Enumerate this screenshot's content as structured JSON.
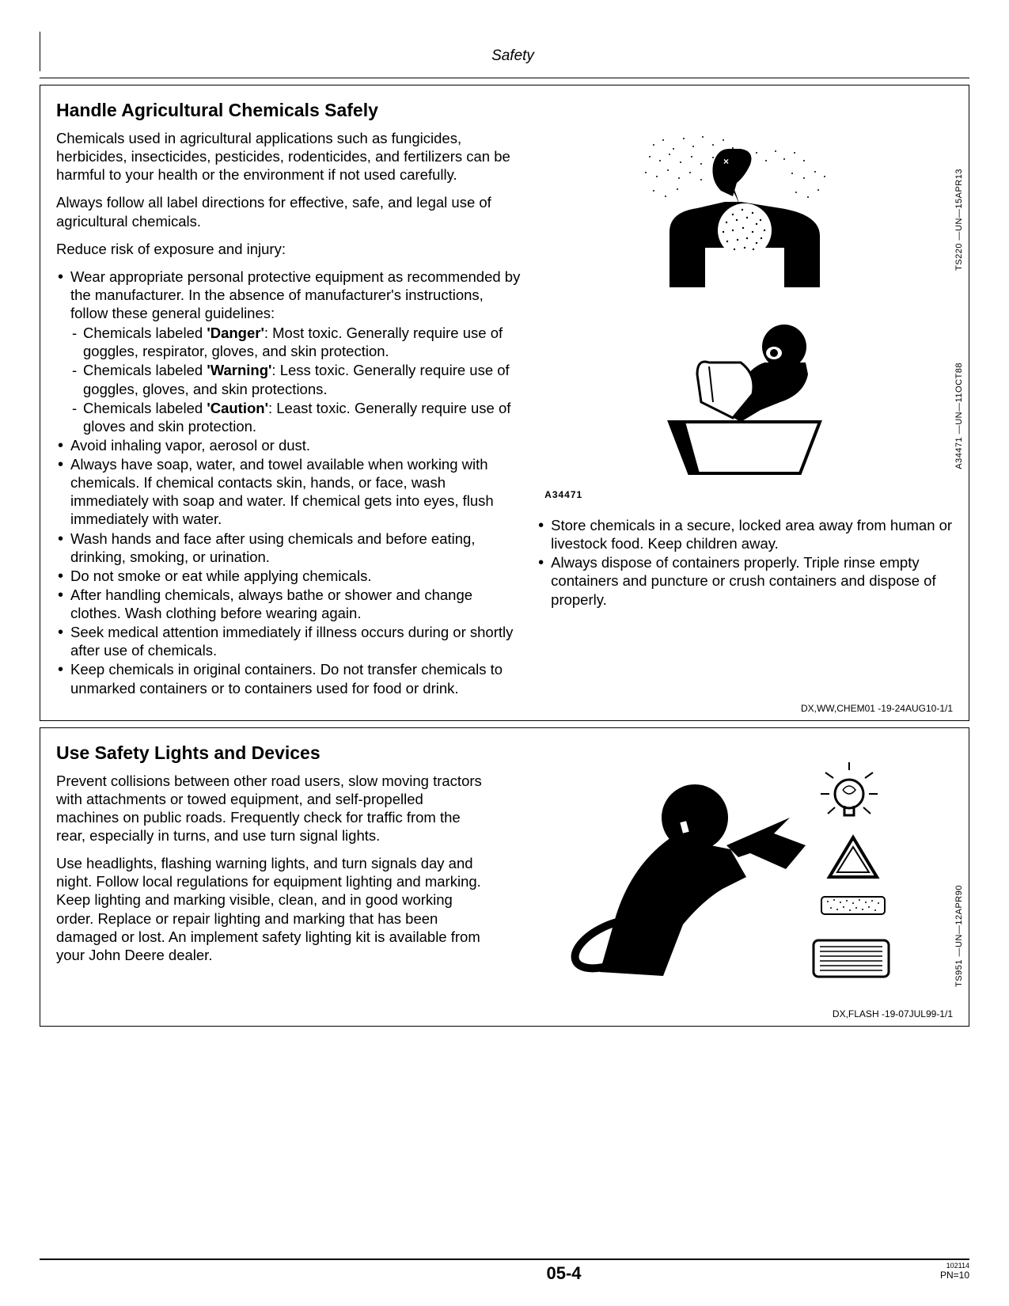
{
  "page_header": "Safety",
  "page_number": "05-4",
  "footer_tiny": "102114",
  "footer_pn": "PN=10",
  "section1": {
    "title": "Handle Agricultural Chemicals Safely",
    "p1": "Chemicals used in agricultural applications such as fungicides, herbicides, insecticides, pesticides, rodenticides, and fertilizers can be harmful to your health or the environment if not used carefully.",
    "p2": "Always follow all label directions for effective, safe, and legal use of agricultural chemicals.",
    "p3": "Reduce risk of exposure and injury:",
    "bullets_left": [
      {
        "text": "Wear appropriate personal protective equipment as recommended by the manufacturer.  In the absence of manufacturer's instructions, follow these general guidelines:",
        "sub": [
          {
            "pre": "Chemicals labeled ",
            "bold": "'Danger'",
            "post": ": Most toxic.  Generally require use of goggles, respirator, gloves, and skin protection."
          },
          {
            "pre": "Chemicals labeled ",
            "bold": "'Warning'",
            "post": ": Less toxic.  Generally require use of goggles, gloves, and skin protections."
          },
          {
            "pre": "Chemicals labeled ",
            "bold": "'Caution'",
            "post": ": Least toxic.  Generally require use of gloves and skin protection."
          }
        ]
      },
      {
        "text": "Avoid inhaling vapor, aerosol or dust."
      },
      {
        "text": "Always have soap, water, and towel available when working with chemicals.  If chemical contacts skin, hands, or face, wash immediately with soap and water.  If chemical gets into eyes, flush immediately with water."
      },
      {
        "text": "Wash hands and face after using chemicals and before eating, drinking, smoking, or urination."
      },
      {
        "text": "Do not smoke or eat while applying chemicals."
      },
      {
        "text": "After handling chemicals, always bathe or shower and change clothes.  Wash clothing before wearing again."
      },
      {
        "text": "Seek medical attention immediately if illness occurs during or shortly after use of chemicals."
      },
      {
        "text": "Keep chemicals in original containers.  Do not transfer chemicals to unmarked containers or to containers used for food or drink."
      }
    ],
    "bullets_right": [
      {
        "text": "Store chemicals in a secure, locked area away from human or livestock food.  Keep children away."
      },
      {
        "text": "Always dispose of containers properly.  Triple rinse empty containers and puncture or crush containers and dispose of properly."
      }
    ],
    "fig1_side": "TS220 —UN—15APR13",
    "fig2_side": "A34471 —UN—11OCT88",
    "fig2_caption": "A34471",
    "footer_code": "DX,WW,CHEM01 -19-24AUG10-1/1"
  },
  "section2": {
    "title": "Use Safety Lights and Devices",
    "p1": "Prevent collisions between other road users, slow moving tractors with attachments or towed equipment, and self-propelled machines on public roads.  Frequently check for traffic from the rear, especially in turns, and use turn signal lights.",
    "p2": "Use headlights, flashing warning lights, and turn signals day and night.  Follow local regulations for equipment lighting and marking.  Keep lighting and marking visible, clean, and in good working order.  Replace or repair lighting and marking that has been damaged or lost.  An implement safety lighting kit is available from your John Deere dealer.",
    "fig_side": "TS951 —UN—12APR90",
    "footer_code": "DX,FLASH -19-07JUL99-1/1"
  }
}
